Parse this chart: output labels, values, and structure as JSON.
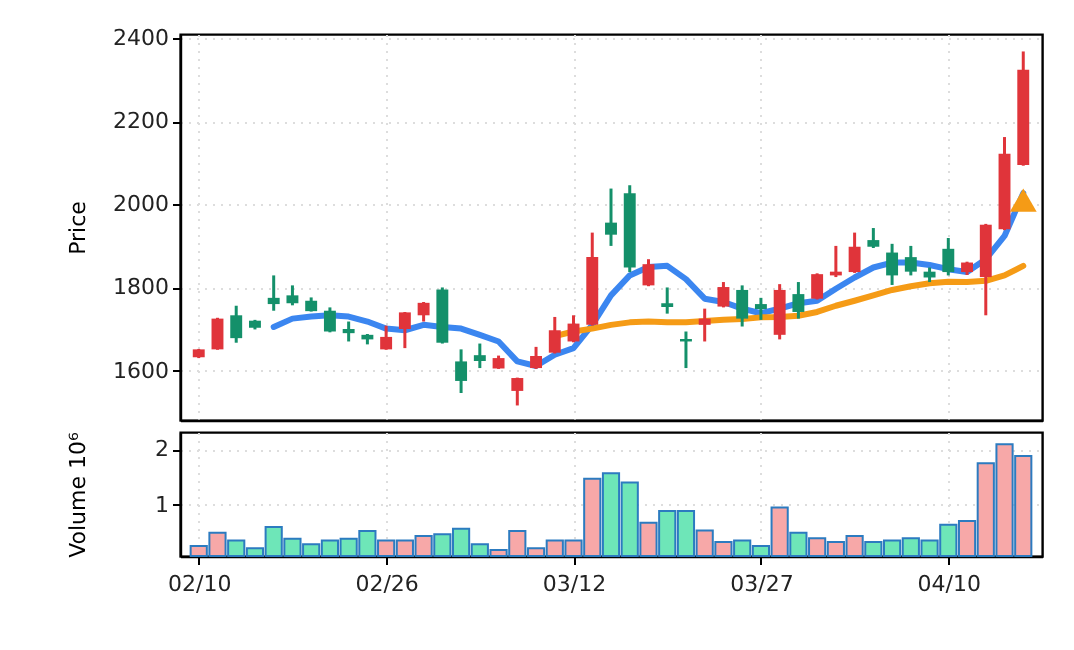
{
  "chart_data": [
    {
      "type": "candlestick",
      "ylabel": "Price",
      "ylim": [
        1481,
        2410
      ],
      "yticks": [
        1600,
        1800,
        2000,
        2200,
        2400
      ],
      "grid": true,
      "tick_labels": "y",
      "categories": [
        null,
        null,
        null,
        null,
        null,
        null,
        null,
        null,
        null,
        null,
        null,
        null,
        null,
        null,
        null,
        null,
        null,
        null,
        null,
        null,
        null,
        null,
        null,
        null,
        null,
        null,
        null,
        null,
        null,
        null,
        null,
        null,
        null,
        null,
        null,
        null,
        null,
        null,
        null,
        null,
        null,
        null,
        null,
        null,
        null
      ],
      "ohlc": [
        [
          1632,
          1652,
          1630,
          1651
        ],
        [
          1651,
          1727,
          1650,
          1725
        ],
        [
          1733,
          1756,
          1667,
          1678
        ],
        [
          1720,
          1722,
          1699,
          1703
        ],
        [
          1775,
          1829,
          1744,
          1760
        ],
        [
          1781,
          1805,
          1757,
          1762
        ],
        [
          1768,
          1776,
          1742,
          1743
        ],
        [
          1744,
          1752,
          1692,
          1694
        ],
        [
          1700,
          1718,
          1670,
          1690
        ],
        [
          1686,
          1688,
          1663,
          1675
        ],
        [
          1651,
          1708,
          1650,
          1681
        ],
        [
          1700,
          1741,
          1654,
          1740
        ],
        [
          1733,
          1765,
          1718,
          1763
        ],
        [
          1795,
          1800,
          1665,
          1667
        ],
        [
          1622,
          1651,
          1546,
          1575
        ],
        [
          1637,
          1665,
          1606,
          1623
        ],
        [
          1605,
          1636,
          1604,
          1630
        ],
        [
          1551,
          1583,
          1516,
          1582
        ],
        [
          1606,
          1657,
          1604,
          1635
        ],
        [
          1643,
          1729,
          1641,
          1697
        ],
        [
          1670,
          1733,
          1668,
          1713
        ],
        [
          1710,
          1932,
          1708,
          1873
        ],
        [
          1956,
          2038,
          1900,
          1927
        ],
        [
          2027,
          2046,
          1837,
          1848
        ],
        [
          1805,
          1868,
          1803,
          1856
        ],
        [
          1762,
          1800,
          1737,
          1753
        ],
        [
          1676,
          1694,
          1606,
          1670
        ],
        [
          1710,
          1749,
          1670,
          1725
        ],
        [
          1754,
          1813,
          1752,
          1801
        ],
        [
          1794,
          1805,
          1706,
          1725
        ],
        [
          1760,
          1775,
          1722,
          1748
        ],
        [
          1686,
          1808,
          1675,
          1794
        ],
        [
          1784,
          1813,
          1725,
          1741
        ],
        [
          1773,
          1834,
          1771,
          1832
        ],
        [
          1829,
          1900,
          1825,
          1838
        ],
        [
          1837,
          1932,
          1835,
          1898
        ],
        [
          1914,
          1943,
          1895,
          1898
        ],
        [
          1884,
          1905,
          1806,
          1829
        ],
        [
          1873,
          1900,
          1829,
          1838
        ],
        [
          1838,
          1848,
          1813,
          1824
        ],
        [
          1893,
          1919,
          1829,
          1837
        ],
        [
          1837,
          1862,
          1830,
          1860
        ],
        [
          1825,
          1953,
          1733,
          1951
        ],
        [
          1940,
          2162,
          1938,
          2122
        ],
        [
          2095,
          2368,
          2093,
          2324
        ]
      ],
      "colors": [
        "#e0343a",
        "#e0343a",
        "#14906a",
        "#14906a",
        "#14906a",
        "#14906a",
        "#14906a",
        "#14906a",
        "#14906a",
        "#14906a",
        "#e0343a",
        "#e0343a",
        "#e0343a",
        "#14906a",
        "#14906a",
        "#14906a",
        "#e0343a",
        "#e0343a",
        "#e0343a",
        "#e0343a",
        "#e0343a",
        "#e0343a",
        "#14906a",
        "#14906a",
        "#e0343a",
        "#14906a",
        "#14906a",
        "#e0343a",
        "#e0343a",
        "#14906a",
        "#14906a",
        "#e0343a",
        "#14906a",
        "#e0343a",
        "#e0343a",
        "#e0343a",
        "#14906a",
        "#14906a",
        "#14906a",
        "#14906a",
        "#14906a",
        "#e0343a",
        "#e0343a",
        "#e0343a",
        "#e0343a"
      ],
      "series": [
        {
          "type": "line",
          "color": "#3b86f0",
          "values": [
            null,
            null,
            null,
            null,
            1705,
            1725,
            1730,
            1733,
            1730,
            1718,
            1701,
            1697,
            1710,
            1705,
            1701,
            1686,
            1670,
            1622,
            1611,
            1638,
            1654,
            1710,
            1781,
            1829,
            1849,
            1852,
            1820,
            1773,
            1765,
            1749,
            1738,
            1749,
            1762,
            1768,
            1797,
            1824,
            1848,
            1860,
            1860,
            1854,
            1844,
            1837,
            1868,
            1924,
            2027
          ]
        },
        {
          "type": "line",
          "color": "#f59b16",
          "values": [
            null,
            null,
            null,
            null,
            null,
            null,
            null,
            null,
            null,
            null,
            null,
            null,
            null,
            null,
            null,
            null,
            null,
            null,
            null,
            1683,
            1694,
            1701,
            1710,
            1716,
            1718,
            1716,
            1716,
            1719,
            1722,
            1724,
            1728,
            1729,
            1732,
            1741,
            1756,
            1768,
            1781,
            1794,
            1803,
            1810,
            1814,
            1813,
            1816,
            1829,
            1852
          ]
        },
        {
          "type": "scatter",
          "color": "#f59b16",
          "marker": "triangle",
          "values": [
            null,
            null,
            null,
            null,
            null,
            null,
            null,
            null,
            null,
            null,
            null,
            null,
            null,
            null,
            null,
            null,
            null,
            null,
            null,
            null,
            null,
            null,
            null,
            null,
            null,
            null,
            null,
            null,
            null,
            null,
            null,
            null,
            null,
            null,
            null,
            null,
            null,
            null,
            null,
            null,
            null,
            null,
            null,
            null,
            2010
          ]
        }
      ]
    },
    {
      "type": "bar",
      "ylabel": "Volume  10⁶",
      "ylim": [
        0.08,
        2.31
      ],
      "yticks": [
        1,
        2
      ],
      "grid": true,
      "categories": [
        "02/10",
        null,
        null,
        null,
        null,
        null,
        null,
        null,
        null,
        null,
        "02/26",
        null,
        null,
        null,
        null,
        null,
        null,
        null,
        null,
        null,
        "03/12",
        null,
        null,
        null,
        null,
        null,
        null,
        null,
        null,
        null,
        "03/27",
        null,
        null,
        null,
        null,
        null,
        null,
        null,
        null,
        null,
        "04/10",
        null,
        null,
        null,
        null
      ],
      "values": [
        0.26,
        0.5,
        0.36,
        0.22,
        0.6,
        0.39,
        0.29,
        0.36,
        0.39,
        0.53,
        0.36,
        0.36,
        0.44,
        0.47,
        0.57,
        0.29,
        0.19,
        0.53,
        0.22,
        0.36,
        0.36,
        1.47,
        1.57,
        1.4,
        0.68,
        0.89,
        0.89,
        0.54,
        0.33,
        0.36,
        0.26,
        0.95,
        0.5,
        0.4,
        0.33,
        0.44,
        0.33,
        0.36,
        0.4,
        0.36,
        0.64,
        0.71,
        1.75,
        2.09,
        1.88
      ],
      "colors": [
        "#f7a8a8",
        "#f7a8a8",
        "#6ee6b8",
        "#6ee6b8",
        "#6ee6b8",
        "#6ee6b8",
        "#6ee6b8",
        "#6ee6b8",
        "#6ee6b8",
        "#6ee6b8",
        "#f7a8a8",
        "#f7a8a8",
        "#f7a8a8",
        "#6ee6b8",
        "#6ee6b8",
        "#6ee6b8",
        "#f7a8a8",
        "#f7a8a8",
        "#f7a8a8",
        "#f7a8a8",
        "#f7a8a8",
        "#f7a8a8",
        "#6ee6b8",
        "#6ee6b8",
        "#f7a8a8",
        "#6ee6b8",
        "#6ee6b8",
        "#f7a8a8",
        "#f7a8a8",
        "#6ee6b8",
        "#6ee6b8",
        "#f7a8a8",
        "#6ee6b8",
        "#f7a8a8",
        "#f7a8a8",
        "#f7a8a8",
        "#6ee6b8",
        "#6ee6b8",
        "#6ee6b8",
        "#6ee6b8",
        "#6ee6b8",
        "#f7a8a8",
        "#f7a8a8",
        "#f7a8a8",
        "#f7a8a8"
      ]
    }
  ]
}
